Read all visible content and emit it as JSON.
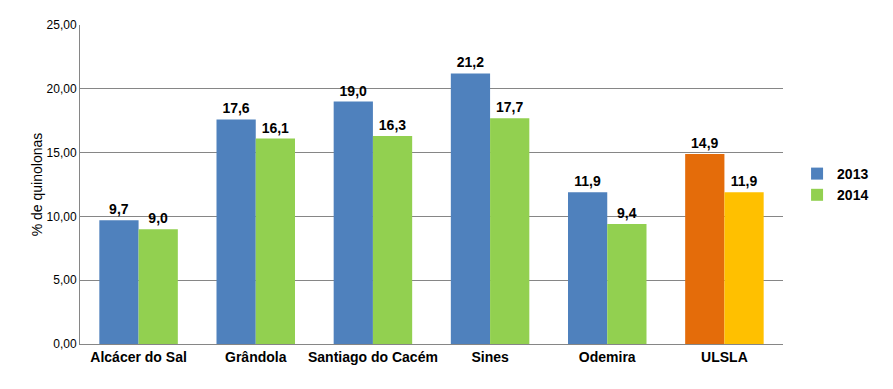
{
  "chart_data": {
    "type": "bar",
    "y_label": "% de quinolonas",
    "categories": [
      "Alcácer do Sal",
      "Grândola",
      "Santiago do Cacém",
      "Sines",
      "Odemira",
      "ULSLA"
    ],
    "series": [
      {
        "name": "2013",
        "colors": [
          "#4f81bd",
          "#4f81bd",
          "#4f81bd",
          "#4f81bd",
          "#4f81bd",
          "#e46c0a"
        ],
        "values": [
          9.7,
          17.6,
          19.0,
          21.2,
          11.9,
          14.9
        ],
        "value_labels": [
          "9,7",
          "17,6",
          "19,0",
          "21,2",
          "11,9",
          "14,9"
        ]
      },
      {
        "name": "2014",
        "colors": [
          "#92d050",
          "#92d050",
          "#92d050",
          "#92d050",
          "#92d050",
          "#ffc000"
        ],
        "values": [
          9.0,
          16.1,
          16.3,
          17.7,
          9.4,
          11.9
        ],
        "value_labels": [
          "9,0",
          "16,1",
          "16,3",
          "17,7",
          "9,4",
          "11,9"
        ]
      }
    ],
    "ylim": [
      0,
      25
    ],
    "yticks": [
      {
        "value": 0,
        "label": "0,00"
      },
      {
        "value": 5,
        "label": "5,00"
      },
      {
        "value": 10,
        "label": "10,00"
      },
      {
        "value": 15,
        "label": "15,00"
      },
      {
        "value": 20,
        "label": "20,00"
      },
      {
        "value": 25,
        "label": "25,00"
      }
    ],
    "grid": true,
    "legend": "right",
    "data_labels": true
  }
}
